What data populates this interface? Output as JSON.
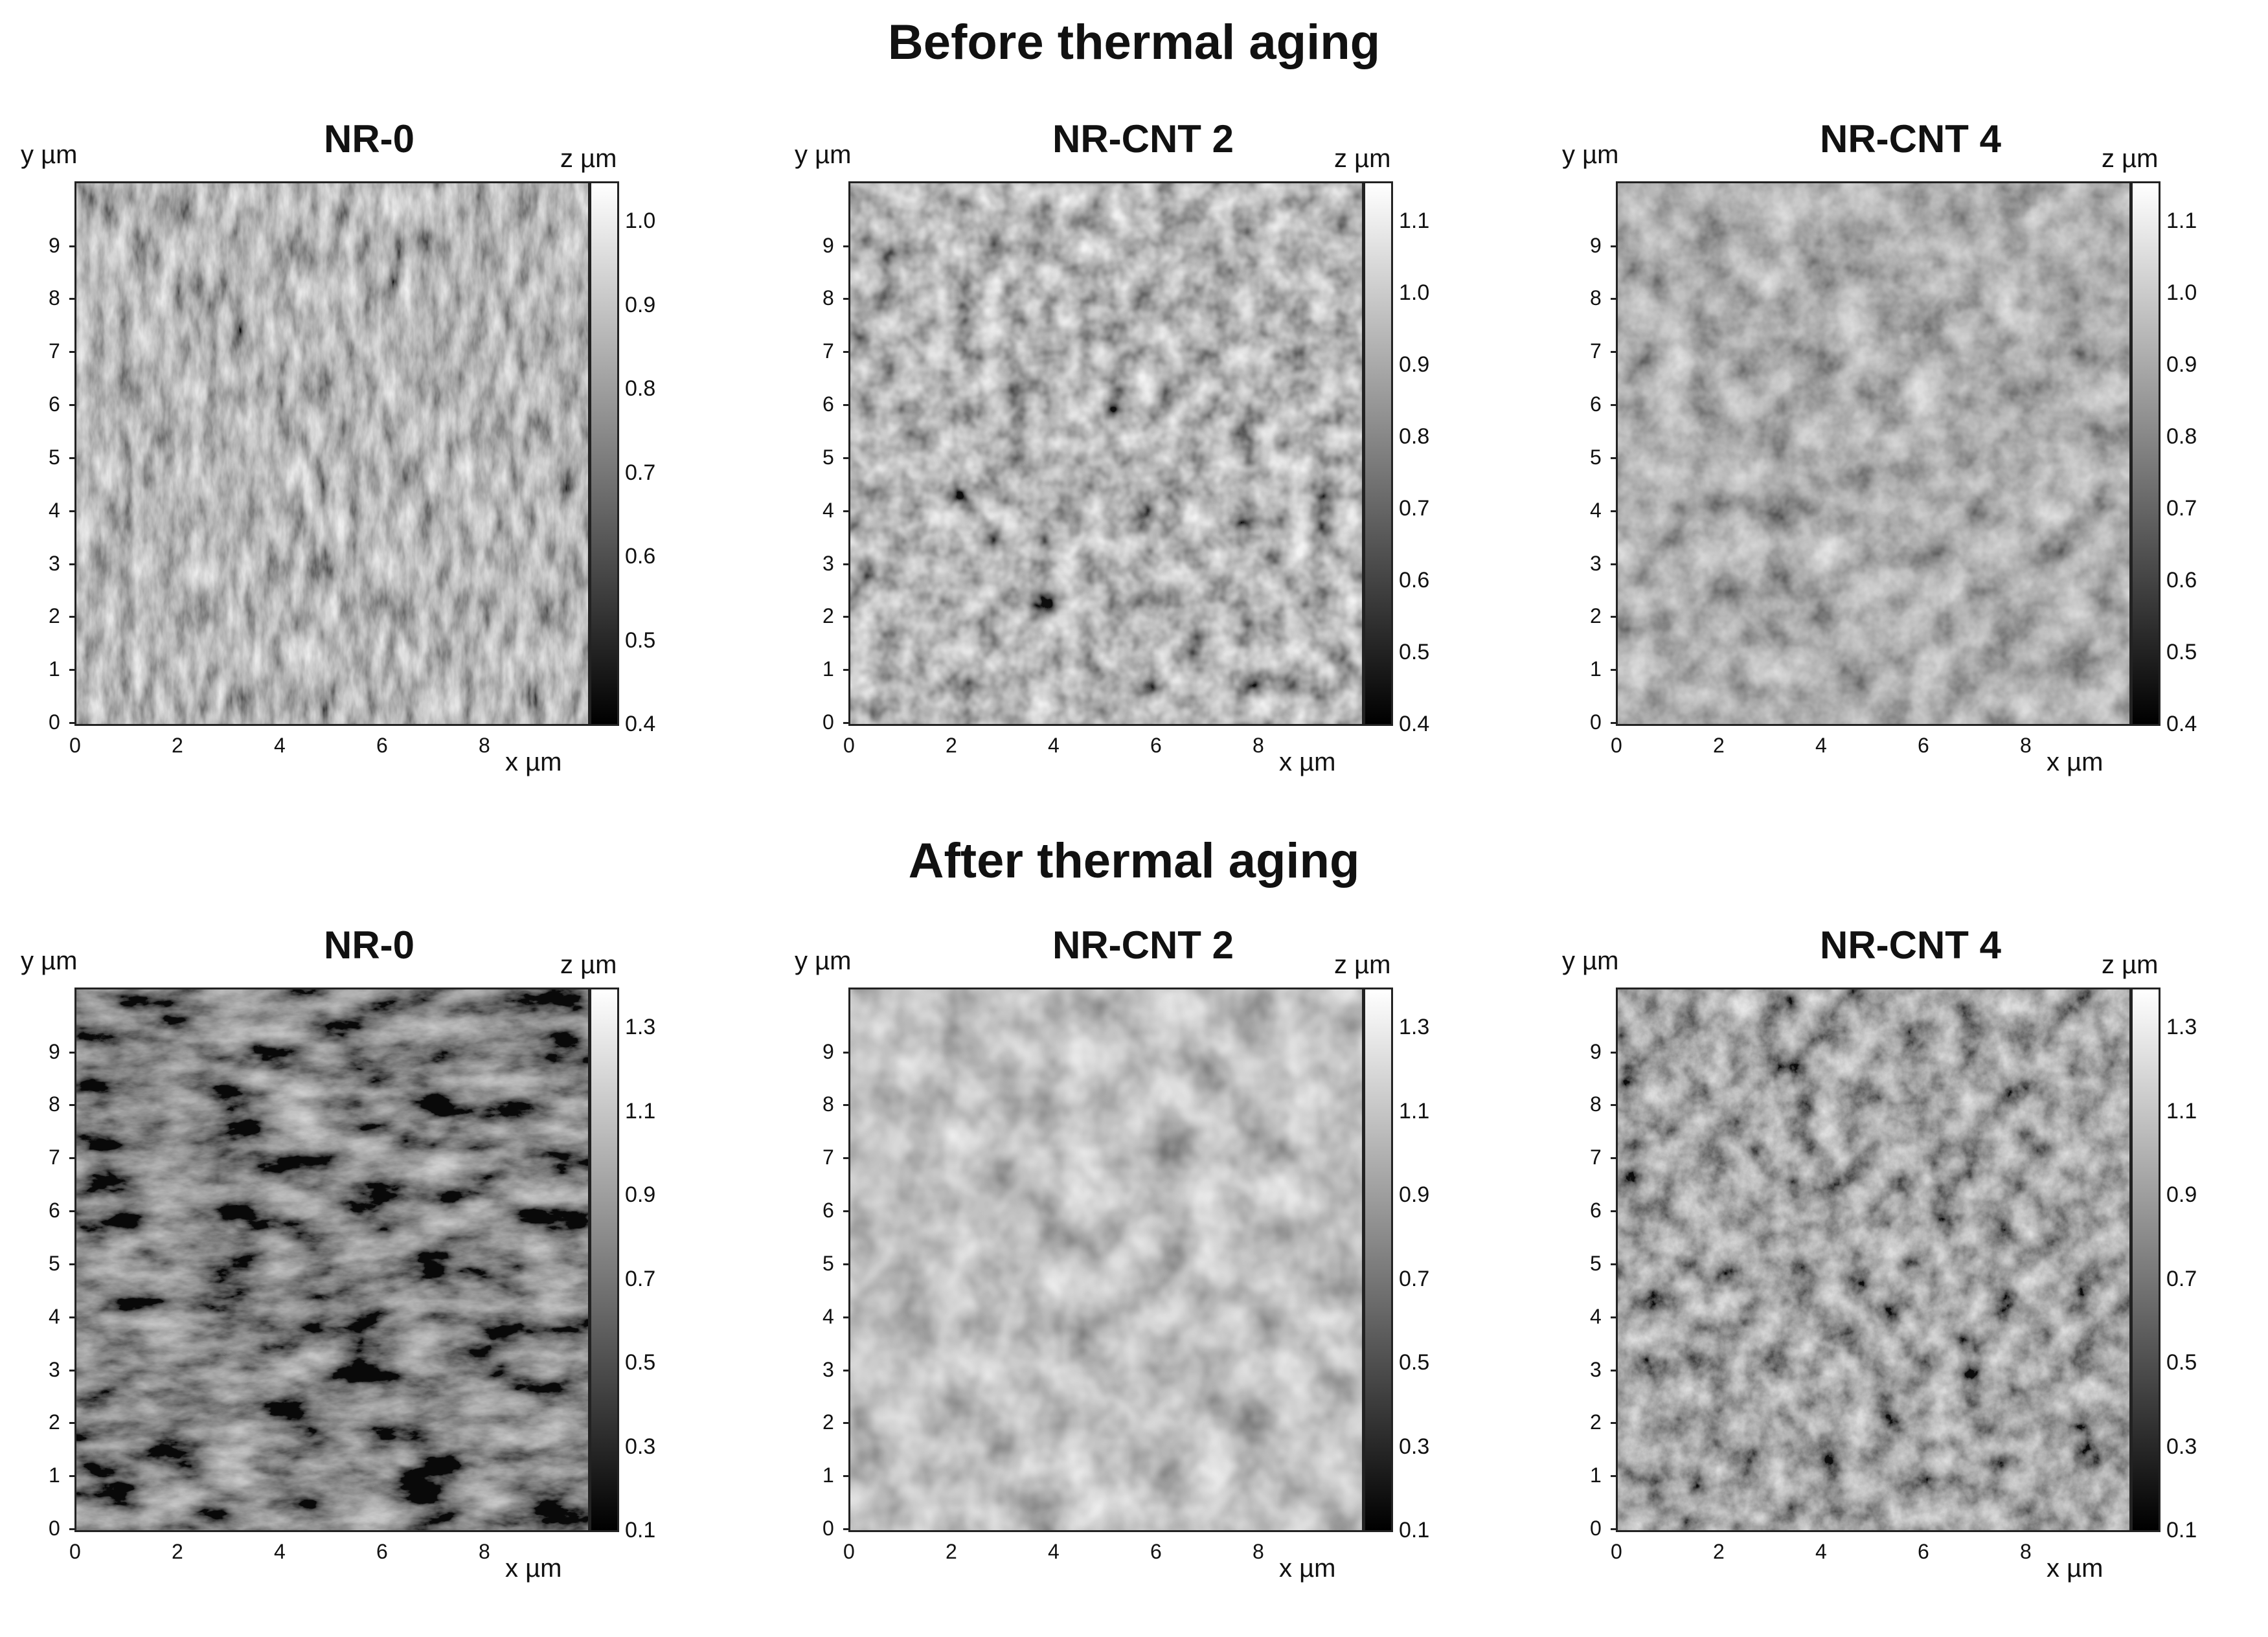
{
  "titles": {
    "before": "Before thermal aging",
    "after": "After thermal aging"
  },
  "panels": [
    {
      "name": "NR-0",
      "row": "before",
      "ylabel": "y  µm",
      "xlabel": "x  µm",
      "zlabel": "z  µm",
      "x_ticks": [
        "0",
        "2",
        "4",
        "6",
        "8"
      ],
      "y_ticks": [
        "0",
        "1",
        "2",
        "3",
        "4",
        "5",
        "6",
        "7",
        "8",
        "9"
      ],
      "colorbar_ticks": [
        "1.0",
        "0.9",
        "0.8",
        "0.7",
        "0.6",
        "0.5",
        "0.4"
      ],
      "image_desc": "AFM surface texture, dense fine striated grains"
    },
    {
      "name": "NR-CNT 2",
      "row": "before",
      "ylabel": "y  µm",
      "xlabel": "x  µm",
      "zlabel": "z  µm",
      "x_ticks": [
        "0",
        "2",
        "4",
        "6",
        "8"
      ],
      "y_ticks": [
        "0",
        "1",
        "2",
        "3",
        "4",
        "5",
        "6",
        "7",
        "8",
        "9"
      ],
      "colorbar_ticks": [
        "1.1",
        "1.0",
        "0.9",
        "0.8",
        "0.7",
        "0.6",
        "0.5",
        "0.4"
      ],
      "image_desc": "AFM surface texture, cellular grains"
    },
    {
      "name": "NR-CNT 4",
      "row": "before",
      "ylabel": "y  µm",
      "xlabel": "x  µm",
      "zlabel": "z  µm",
      "x_ticks": [
        "0",
        "2",
        "4",
        "6",
        "8"
      ],
      "y_ticks": [
        "0",
        "1",
        "2",
        "3",
        "4",
        "5",
        "6",
        "7",
        "8",
        "9"
      ],
      "colorbar_ticks": [
        "1.1",
        "1.0",
        "0.9",
        "0.8",
        "0.7",
        "0.6",
        "0.5",
        "0.4"
      ],
      "image_desc": "AFM surface texture, coarse irregular grains"
    },
    {
      "name": "NR-0",
      "row": "after",
      "ylabel": "y  µm",
      "xlabel": "x  µm",
      "zlabel": "z  µm",
      "x_ticks": [
        "0",
        "2",
        "4",
        "6",
        "8"
      ],
      "y_ticks": [
        "0",
        "1",
        "2",
        "3",
        "4",
        "5",
        "6",
        "7",
        "8",
        "9"
      ],
      "colorbar_ticks": [
        "1.3",
        "1.1",
        "0.9",
        "0.7",
        "0.5",
        "0.3",
        "0.1"
      ],
      "image_desc": "AFM surface texture, dark with bright crack network"
    },
    {
      "name": "NR-CNT 2",
      "row": "after",
      "ylabel": "y  µm",
      "xlabel": "x  µm",
      "zlabel": "z  µm",
      "x_ticks": [
        "0",
        "2",
        "4",
        "6",
        "8"
      ],
      "y_ticks": [
        "0",
        "1",
        "2",
        "3",
        "4",
        "5",
        "6",
        "7",
        "8",
        "9"
      ],
      "colorbar_ticks": [
        "1.3",
        "1.1",
        "0.9",
        "0.7",
        "0.5",
        "0.3",
        "0.1"
      ],
      "image_desc": "AFM surface texture, light with dark fissures"
    },
    {
      "name": "NR-CNT 4",
      "row": "after",
      "ylabel": "y  µm",
      "xlabel": "x  µm",
      "zlabel": "z  µm",
      "x_ticks": [
        "0",
        "2",
        "4",
        "6",
        "8"
      ],
      "y_ticks": [
        "0",
        "1",
        "2",
        "3",
        "4",
        "5",
        "6",
        "7",
        "8",
        "9"
      ],
      "colorbar_ticks": [
        "1.3",
        "1.1",
        "0.9",
        "0.7",
        "0.5",
        "0.3",
        "0.1"
      ],
      "image_desc": "AFM surface texture, dense rough grains"
    }
  ],
  "textures": [
    {
      "baseFreq": "0.09 0.03",
      "octaves": 4,
      "slope": 1.5,
      "intercept": -0.25,
      "seed": 3,
      "tint": "#8d8d8d"
    },
    {
      "baseFreq": "0.05",
      "octaves": 3,
      "slope": 1.7,
      "intercept": -0.35,
      "seed": 7,
      "tint": "#8a8a8a"
    },
    {
      "baseFreq": "0.035",
      "octaves": 4,
      "slope": 1.3,
      "intercept": -0.2,
      "seed": 11,
      "tint": "#8a8a8a"
    },
    {
      "baseFreq": "0.02 0.05",
      "octaves": 5,
      "slope": 1.6,
      "intercept": -0.55,
      "seed": 19,
      "tint": "#5f5f5f"
    },
    {
      "baseFreq": "0.03",
      "octaves": 3,
      "slope": 1.2,
      "intercept": -0.05,
      "seed": 23,
      "tint": "#b0b0b0"
    },
    {
      "baseFreq": "0.045",
      "octaves": 5,
      "slope": 1.5,
      "intercept": -0.35,
      "seed": 29,
      "tint": "#7f7f7f"
    }
  ]
}
